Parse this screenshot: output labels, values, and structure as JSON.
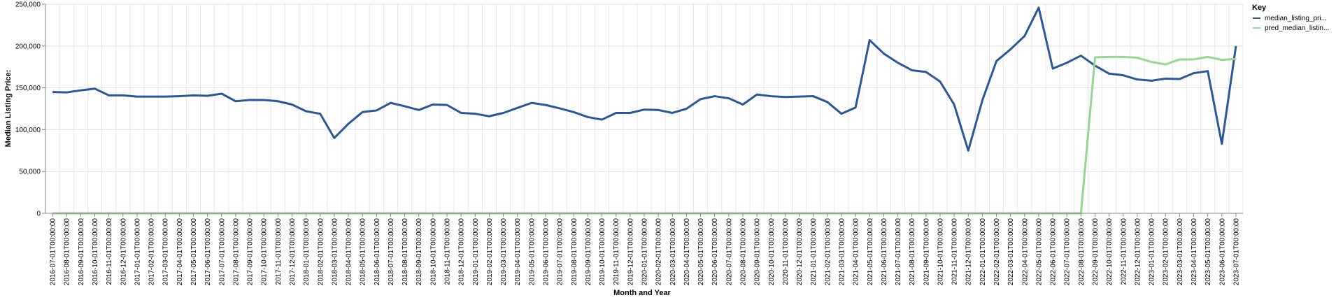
{
  "chart_data": {
    "type": "line",
    "xlabel": "Month and Year",
    "ylabel": "Median Listing Price:",
    "ylim": [
      0,
      250000
    ],
    "y_ticks": [
      0,
      50000,
      100000,
      150000,
      200000,
      250000
    ],
    "y_tick_labels": [
      "0",
      "50,000",
      "100,000",
      "150,000",
      "200,000",
      "250,000"
    ],
    "grid": true,
    "legend": {
      "title": "Key",
      "position": "top-right"
    },
    "categories": [
      "2016-07-01T00:00:00",
      "2016-08-01T00:00:00",
      "2016-09-01T00:00:00",
      "2016-10-01T00:00:00",
      "2016-11-01T00:00:00",
      "2016-12-01T00:00:00",
      "2017-01-01T00:00:00",
      "2017-02-01T00:00:00",
      "2017-03-01T00:00:00",
      "2017-04-01T00:00:00",
      "2017-05-01T00:00:00",
      "2017-06-01T00:00:00",
      "2017-07-01T00:00:00",
      "2017-08-01T00:00:00",
      "2017-09-01T00:00:00",
      "2017-10-01T00:00:00",
      "2017-11-01T00:00:00",
      "2017-12-01T00:00:00",
      "2018-01-01T00:00:00",
      "2018-02-01T00:00:00",
      "2018-03-01T00:00:00",
      "2018-04-01T00:00:00",
      "2018-05-01T00:00:00",
      "2018-06-01T00:00:00",
      "2018-07-01T00:00:00",
      "2018-08-01T00:00:00",
      "2018-09-01T00:00:00",
      "2018-10-01T00:00:00",
      "2018-11-01T00:00:00",
      "2018-12-01T00:00:00",
      "2019-01-01T00:00:00",
      "2019-02-01T00:00:00",
      "2019-03-01T00:00:00",
      "2019-04-01T00:00:00",
      "2019-05-01T00:00:00",
      "2019-06-01T00:00:00",
      "2019-07-01T00:00:00",
      "2019-08-01T00:00:00",
      "2019-09-01T00:00:00",
      "2019-10-01T00:00:00",
      "2019-11-01T00:00:00",
      "2019-12-01T00:00:00",
      "2020-01-01T00:00:00",
      "2020-02-01T00:00:00",
      "2020-03-01T00:00:00",
      "2020-04-01T00:00:00",
      "2020-05-01T00:00:00",
      "2020-06-01T00:00:00",
      "2020-07-01T00:00:00",
      "2020-08-01T00:00:00",
      "2020-09-01T00:00:00",
      "2020-10-01T00:00:00",
      "2020-11-01T00:00:00",
      "2020-12-01T00:00:00",
      "2021-01-01T00:00:00",
      "2021-02-01T00:00:00",
      "2021-03-01T00:00:00",
      "2021-04-01T00:00:00",
      "2021-05-01T00:00:00",
      "2021-06-01T00:00:00",
      "2021-07-01T00:00:00",
      "2021-08-01T00:00:00",
      "2021-09-01T00:00:00",
      "2021-10-01T00:00:00",
      "2021-11-01T00:00:00",
      "2021-12-01T00:00:00",
      "2022-01-01T00:00:00",
      "2022-02-01T00:00:00",
      "2022-03-01T00:00:00",
      "2022-04-01T00:00:00",
      "2022-05-01T00:00:00",
      "2022-06-01T00:00:00",
      "2022-07-01T00:00:00",
      "2022-08-01T00:00:00",
      "2022-09-01T00:00:00",
      "2022-10-01T00:00:00",
      "2022-11-01T00:00:00",
      "2022-12-01T00:00:00",
      "2023-01-01T00:00:00",
      "2023-02-01T00:00:00",
      "2023-03-01T00:00:00",
      "2023-04-01T00:00:00",
      "2023-05-01T00:00:00",
      "2023-06-01T00:00:00",
      "2023-07-01T00:00:00"
    ],
    "series": [
      {
        "name": "median_listing_pri...",
        "color": "#2c5797",
        "values": [
          145000,
          144500,
          147000,
          149000,
          141000,
          141000,
          139500,
          139500,
          139500,
          140000,
          141000,
          140500,
          143000,
          134000,
          135500,
          135500,
          134000,
          130000,
          122000,
          119000,
          90000,
          107000,
          121000,
          123000,
          132000,
          128000,
          123500,
          130000,
          129500,
          120000,
          119000,
          116000,
          120000,
          126000,
          132000,
          129500,
          125500,
          121000,
          115000,
          112000,
          120000,
          120000,
          124000,
          123500,
          120000,
          125000,
          136500,
          140000,
          137500,
          130000,
          142000,
          140000,
          139000,
          139500,
          140000,
          133000,
          119000,
          126500,
          207000,
          191000,
          180000,
          171000,
          169000,
          157500,
          130000,
          75000,
          135000,
          182000,
          196000,
          212000,
          246000,
          173000,
          180000,
          188500,
          176500,
          167000,
          165000,
          160000,
          158500,
          161000,
          160500,
          167500,
          170000,
          83000,
          200000
        ]
      },
      {
        "name": "pred_median_listin...",
        "color": "#98d594",
        "values": [
          0,
          0,
          0,
          0,
          0,
          0,
          0,
          0,
          0,
          0,
          0,
          0,
          0,
          0,
          0,
          0,
          0,
          0,
          0,
          0,
          0,
          0,
          0,
          0,
          0,
          0,
          0,
          0,
          0,
          0,
          0,
          0,
          0,
          0,
          0,
          0,
          0,
          0,
          0,
          0,
          0,
          0,
          0,
          0,
          0,
          0,
          0,
          0,
          0,
          0,
          0,
          0,
          0,
          0,
          0,
          0,
          0,
          0,
          0,
          0,
          0,
          0,
          0,
          0,
          0,
          0,
          0,
          0,
          0,
          0,
          0,
          0,
          0,
          0,
          186500,
          187000,
          187000,
          186000,
          181000,
          178000,
          184000,
          184000,
          187000,
          183500,
          184500
        ]
      }
    ]
  }
}
